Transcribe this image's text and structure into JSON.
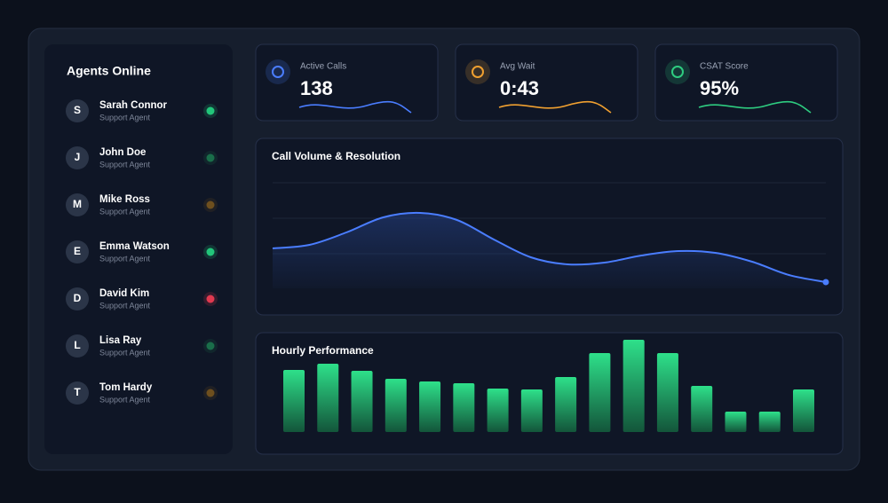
{
  "agents_panel": {
    "title": "Agents Online",
    "agents": [
      {
        "initial": "S",
        "name": "Sarah Connor",
        "role": "Support Agent",
        "status_color": "#22c57a"
      },
      {
        "initial": "J",
        "name": "John Doe",
        "role": "Support Agent",
        "status_color": "#1a6e4a"
      },
      {
        "initial": "M",
        "name": "Mike Ross",
        "role": "Support Agent",
        "status_color": "#6e4f1e"
      },
      {
        "initial": "E",
        "name": "Emma Watson",
        "role": "Support Agent",
        "status_color": "#22c57a"
      },
      {
        "initial": "D",
        "name": "David Kim",
        "role": "Support Agent",
        "status_color": "#e0394f"
      },
      {
        "initial": "L",
        "name": "Lisa Ray",
        "role": "Support Agent",
        "status_color": "#1a6e4a"
      },
      {
        "initial": "T",
        "name": "Tom Hardy",
        "role": "Support Agent",
        "status_color": "#6e4f1e"
      }
    ]
  },
  "stats": [
    {
      "label": "Active Calls",
      "value": "138",
      "color": "#4a7dff"
    },
    {
      "label": "Avg Wait",
      "value": "0:43",
      "color": "#f0a030"
    },
    {
      "label": "CSAT Score",
      "value": "95%",
      "color": "#2ecc80"
    }
  ],
  "call_volume": {
    "type": "line",
    "title": "Call Volume & Resolution",
    "color": "#4a7dff",
    "values": [
      45,
      49,
      63,
      80,
      85,
      77,
      55,
      35,
      27,
      29,
      37,
      42,
      40,
      30,
      15,
      7
    ]
  },
  "hourly_performance": {
    "type": "bar",
    "title": "Hourly Performance",
    "color": "#2ecc80",
    "values": [
      70,
      77,
      69,
      60,
      57,
      55,
      49,
      48,
      62,
      89,
      104,
      89,
      52,
      23,
      23,
      48
    ]
  }
}
